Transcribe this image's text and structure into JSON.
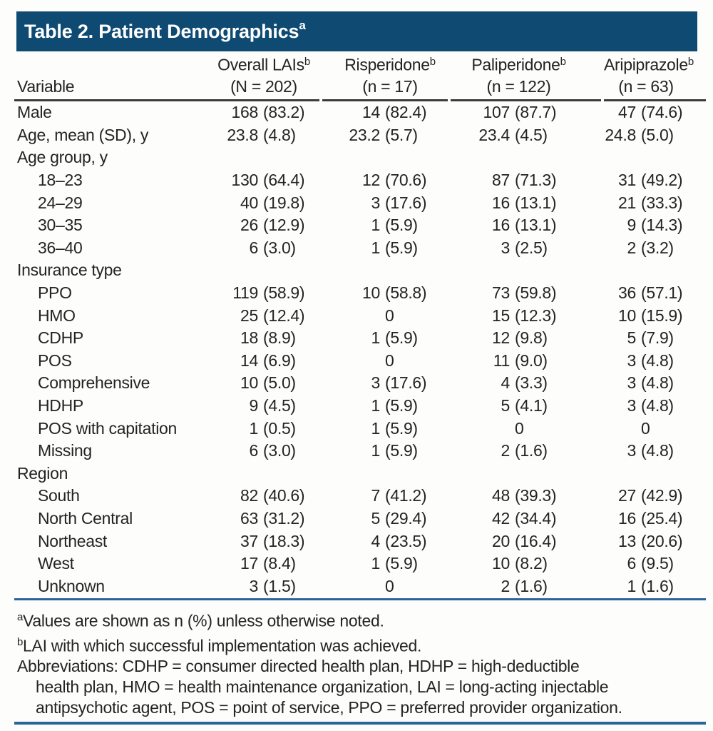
{
  "title": {
    "text": "Table 2. Patient Demographics",
    "sup": "a"
  },
  "colors": {
    "header_bg": "#0f4a73",
    "rule_blue": "#28659c",
    "rule_dark": "#3b3b3b",
    "text": "#232323"
  },
  "header": {
    "variable_label": "Variable",
    "columns": [
      {
        "name": "Overall LAIs",
        "sup": "b",
        "count": "(N = 202)"
      },
      {
        "name": "Risperidone",
        "sup": "b",
        "count": "(n = 17)"
      },
      {
        "name": "Paliperidone",
        "sup": "b",
        "count": "(n = 122)"
      },
      {
        "name": "Aripiprazole",
        "sup": "b",
        "count": "(n = 63)"
      }
    ]
  },
  "rows": [
    {
      "label": "Male",
      "indent": false,
      "values": [
        "168 (83.2)",
        "14 (82.4)",
        "107 (87.7)",
        "47 (74.6)"
      ]
    },
    {
      "label": "Age, mean (SD), y",
      "indent": false,
      "values": [
        "23.8 (4.8)",
        "23.2 (5.7)",
        "23.4 (4.5)",
        "24.8 (5.0)"
      ]
    },
    {
      "label": "Age group, y",
      "indent": false,
      "values": [
        "",
        "",
        "",
        ""
      ]
    },
    {
      "label": "18–23",
      "indent": true,
      "values": [
        "130 (64.4)",
        "12 (70.6)",
        "87 (71.3)",
        "31 (49.2)"
      ]
    },
    {
      "label": "24–29",
      "indent": true,
      "values": [
        "40 (19.8)",
        "3 (17.6)",
        "16 (13.1)",
        "21 (33.3)"
      ]
    },
    {
      "label": "30–35",
      "indent": true,
      "values": [
        "26 (12.9)",
        "1 (5.9)",
        "16 (13.1)",
        "9 (14.3)"
      ]
    },
    {
      "label": "36–40",
      "indent": true,
      "values": [
        "6 (3.0)",
        "1 (5.9)",
        "3 (2.5)",
        "2 (3.2)"
      ]
    },
    {
      "label": "Insurance type",
      "indent": false,
      "values": [
        "",
        "",
        "",
        ""
      ]
    },
    {
      "label": "PPO",
      "indent": true,
      "values": [
        "119 (58.9)",
        "10 (58.8)",
        "73 (59.8)",
        "36 (57.1)"
      ]
    },
    {
      "label": "HMO",
      "indent": true,
      "values": [
        "25 (12.4)",
        "0",
        "15 (12.3)",
        "10 (15.9)"
      ]
    },
    {
      "label": "CDHP",
      "indent": true,
      "values": [
        "18 (8.9)",
        "1 (5.9)",
        "12 (9.8)",
        "5 (7.9)"
      ]
    },
    {
      "label": "POS",
      "indent": true,
      "values": [
        "14 (6.9)",
        "0",
        "11 (9.0)",
        "3 (4.8)"
      ]
    },
    {
      "label": "Comprehensive",
      "indent": true,
      "values": [
        "10 (5.0)",
        "3 (17.6)",
        "4 (3.3)",
        "3 (4.8)"
      ]
    },
    {
      "label": "HDHP",
      "indent": true,
      "values": [
        "9 (4.5)",
        "1 (5.9)",
        "5 (4.1)",
        "3 (4.8)"
      ]
    },
    {
      "label": "POS with capitation",
      "indent": true,
      "values": [
        "1 (0.5)",
        "1 (5.9)",
        "0",
        "0"
      ]
    },
    {
      "label": "Missing",
      "indent": true,
      "values": [
        "6 (3.0)",
        "1 (5.9)",
        "2 (1.6)",
        "3 (4.8)"
      ]
    },
    {
      "label": "Region",
      "indent": false,
      "values": [
        "",
        "",
        "",
        ""
      ]
    },
    {
      "label": "South",
      "indent": true,
      "values": [
        "82 (40.6)",
        "7 (41.2)",
        "48 (39.3)",
        "27 (42.9)"
      ]
    },
    {
      "label": "North Central",
      "indent": true,
      "values": [
        "63 (31.2)",
        "5 (29.4)",
        "42 (34.4)",
        "16 (25.4)"
      ]
    },
    {
      "label": "Northeast",
      "indent": true,
      "values": [
        "37 (18.3)",
        "4 (23.5)",
        "20 (16.4)",
        "13 (20.6)"
      ]
    },
    {
      "label": "West",
      "indent": true,
      "values": [
        "17 (8.4)",
        "1 (5.9)",
        "10 (8.2)",
        "6 (9.5)"
      ]
    },
    {
      "label": "Unknown",
      "indent": true,
      "values": [
        "3 (1.5)",
        "0",
        "2 (1.6)",
        "1 (1.6)"
      ]
    }
  ],
  "footnotes": {
    "a": {
      "sup": "a",
      "text": "Values are shown as n (%) unless otherwise noted."
    },
    "b": {
      "sup": "b",
      "text": "LAI with which successful implementation was achieved."
    },
    "abbr_text": "Abbreviations: CDHP = consumer directed health plan, HDHP = high-deductible health plan, HMO = health maintenance organization, LAI = long-acting injectable antipsychotic agent, POS = point of service, PPO = preferred provider organization.",
    "abbr_lines": [
      "Abbreviations: CDHP = consumer directed health plan, HDHP = high-deductible",
      "health plan, HMO = health maintenance organization, LAI = long-acting injectable",
      "antipsychotic agent, POS = point of service, PPO = preferred provider organization."
    ]
  }
}
